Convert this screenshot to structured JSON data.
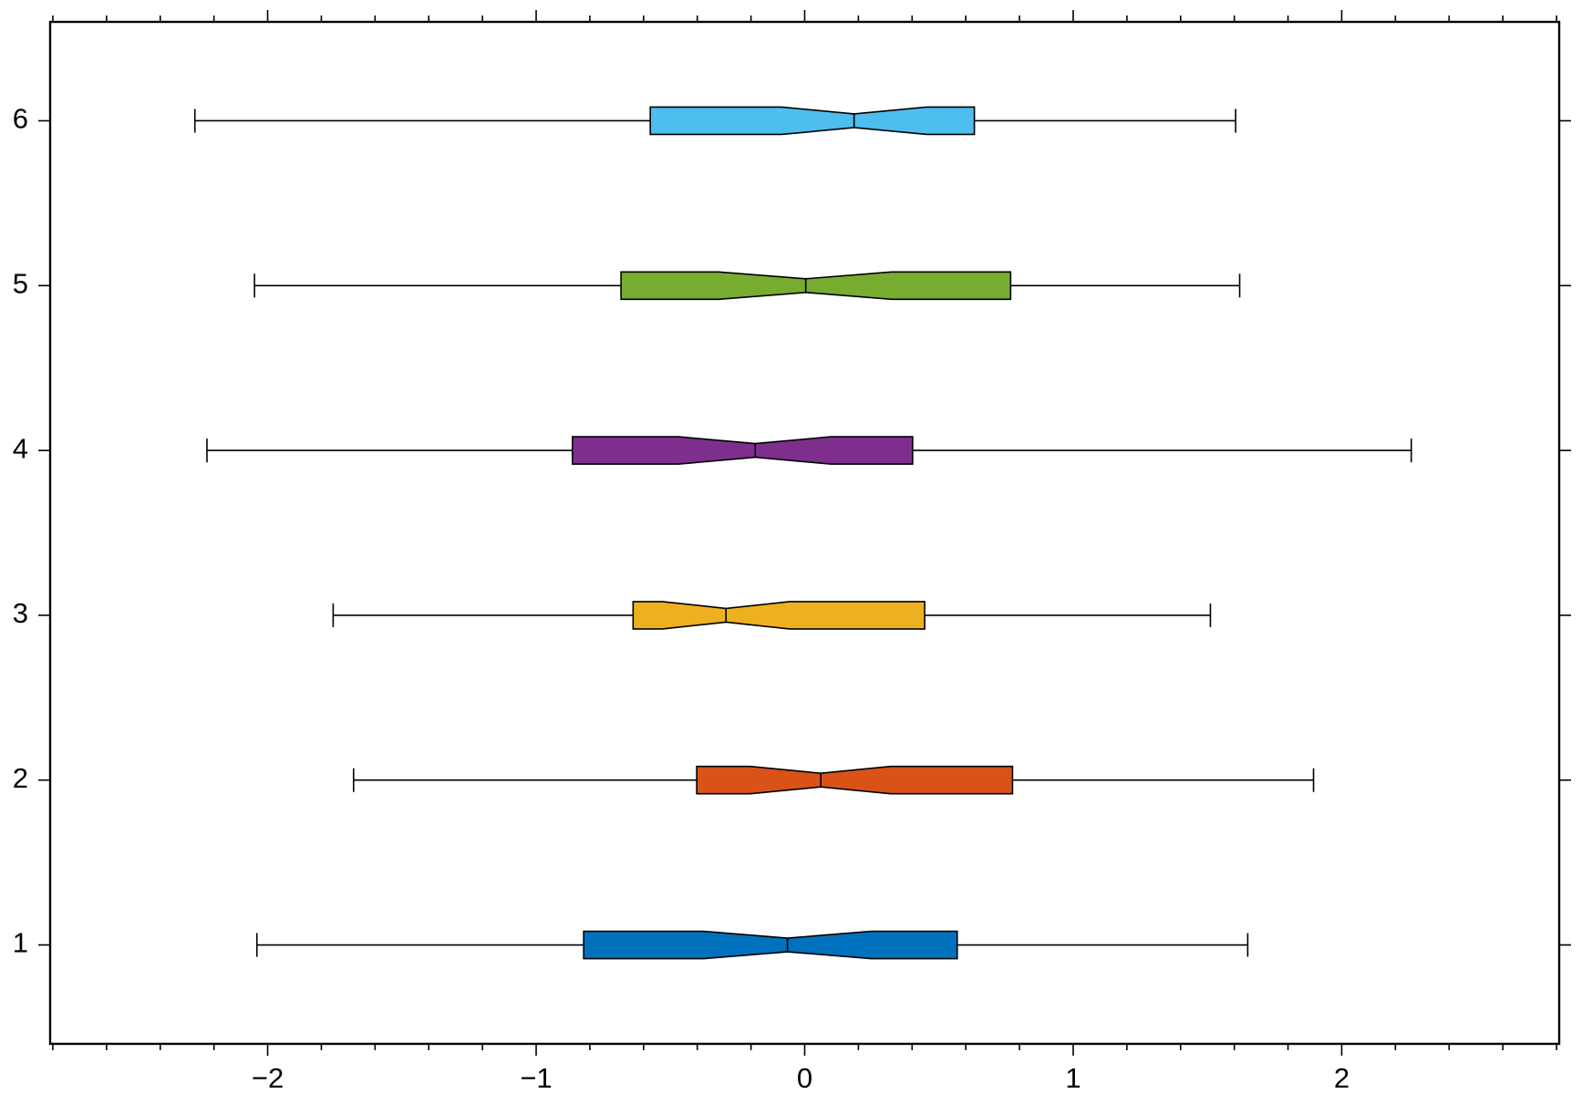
{
  "chart_data": {
    "type": "box",
    "orientation": "horizontal",
    "notched": true,
    "y": [
      1,
      2,
      3,
      4,
      5,
      6
    ],
    "whisker_low": [
      -2.04,
      -1.68,
      -1.756,
      -2.226,
      -2.049,
      -2.271
    ],
    "q1": [
      -0.823,
      -0.402,
      -0.639,
      -0.865,
      -0.684,
      -0.575
    ],
    "notch_low": [
      -0.376,
      -0.203,
      -0.53,
      -0.47,
      -0.32,
      -0.086
    ],
    "median": [
      -0.064,
      0.06,
      -0.293,
      -0.184,
      0.004,
      0.184
    ],
    "notch_high": [
      0.248,
      0.32,
      -0.056,
      0.098,
      0.323,
      0.455
    ],
    "q3": [
      0.568,
      0.774,
      0.447,
      0.402,
      0.767,
      0.632
    ],
    "whisker_high": [
      1.65,
      1.895,
      1.511,
      2.259,
      1.62,
      1.605
    ],
    "colors": [
      "#0072bd",
      "#d95319",
      "#edb120",
      "#7e2f8e",
      "#77ac30",
      "#4dbeee"
    ],
    "xlim": [
      -2.81,
      2.81
    ],
    "ylim": [
      0.4,
      6.6
    ],
    "xticks": [
      {
        "value": -2,
        "label": "−2"
      },
      {
        "value": -1,
        "label": "−1"
      },
      0,
      1,
      2
    ],
    "xminorticks": [
      -2.8,
      -2.6,
      -2.4,
      -2.2,
      -1.8,
      -1.6,
      -1.4,
      -1.2,
      -0.8,
      -0.6,
      -0.4,
      -0.2,
      0.2,
      0.4,
      0.6,
      0.8,
      1.2,
      1.4,
      1.6,
      1.8,
      2.2,
      2.4,
      2.6,
      2.8
    ],
    "yticks": [
      1,
      2,
      3,
      4,
      5,
      6
    ]
  }
}
